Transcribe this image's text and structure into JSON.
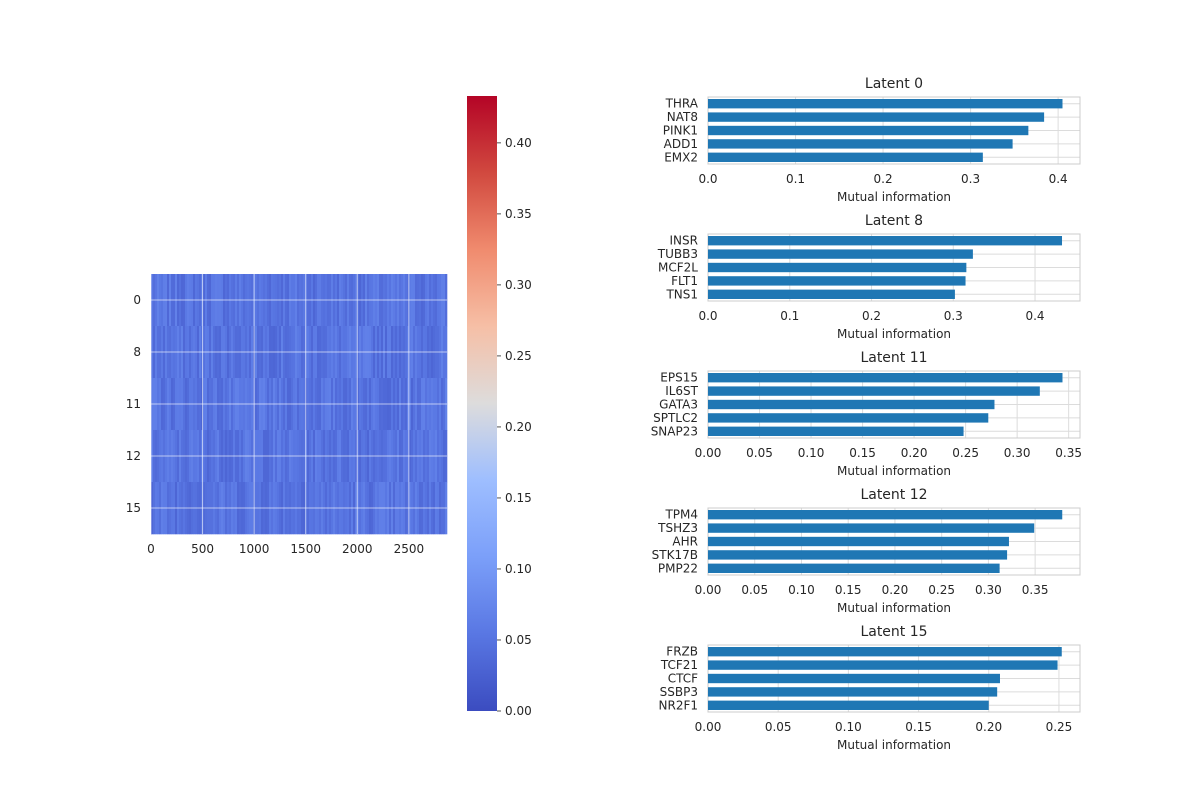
{
  "chart_data": [
    {
      "type": "heatmap",
      "title": "",
      "xlabel": "",
      "ylabel": "",
      "x_ticks": [
        0,
        500,
        1000,
        1500,
        2000,
        2500
      ],
      "xlim": [
        0,
        2870
      ],
      "y_tick_labels": [
        "0",
        "8",
        "11",
        "12",
        "15"
      ],
      "rows": 5,
      "value_range": [
        0.0,
        0.43
      ],
      "typical_value": 0.05,
      "grid": true,
      "colormap": "coolwarm",
      "colorbar": {
        "ticks": [
          "0.00",
          "0.05",
          "0.10",
          "0.15",
          "0.20",
          "0.25",
          "0.30",
          "0.35",
          "0.40"
        ],
        "min": 0.0,
        "max": 0.433
      }
    },
    {
      "type": "bar",
      "orientation": "horizontal",
      "title": "Latent 0",
      "xlabel": "Mutual information",
      "categories": [
        "THRA",
        "NAT8",
        "PINK1",
        "ADD1",
        "EMX2"
      ],
      "values": [
        0.405,
        0.384,
        0.366,
        0.348,
        0.314
      ],
      "xlim": [
        0,
        0.425
      ],
      "x_ticks": [
        "0.0",
        "0.1",
        "0.2",
        "0.3",
        "0.4"
      ],
      "grid": true
    },
    {
      "type": "bar",
      "orientation": "horizontal",
      "title": "Latent 8",
      "xlabel": "Mutual information",
      "categories": [
        "INSR",
        "TUBB3",
        "MCF2L",
        "FLT1",
        "TNS1"
      ],
      "values": [
        0.433,
        0.324,
        0.316,
        0.315,
        0.302
      ],
      "xlim": [
        0,
        0.455
      ],
      "x_ticks": [
        "0.0",
        "0.1",
        "0.2",
        "0.3",
        "0.4"
      ],
      "grid": true
    },
    {
      "type": "bar",
      "orientation": "horizontal",
      "title": "Latent 11",
      "xlabel": "Mutual information",
      "categories": [
        "EPS15",
        "IL6ST",
        "GATA3",
        "SPTLC2",
        "SNAP23"
      ],
      "values": [
        0.344,
        0.322,
        0.278,
        0.272,
        0.248
      ],
      "xlim": [
        0,
        0.361
      ],
      "x_ticks": [
        "0.00",
        "0.05",
        "0.10",
        "0.15",
        "0.20",
        "0.25",
        "0.30",
        "0.35"
      ],
      "grid": true
    },
    {
      "type": "bar",
      "orientation": "horizontal",
      "title": "Latent 12",
      "xlabel": "Mutual information",
      "categories": [
        "TPM4",
        "TSHZ3",
        "AHR",
        "STK17B",
        "PMP22"
      ],
      "values": [
        0.379,
        0.349,
        0.322,
        0.32,
        0.312
      ],
      "xlim": [
        0,
        0.398
      ],
      "x_ticks": [
        "0.00",
        "0.05",
        "0.10",
        "0.15",
        "0.20",
        "0.25",
        "0.30",
        "0.35"
      ],
      "grid": true
    },
    {
      "type": "bar",
      "orientation": "horizontal",
      "title": "Latent 15",
      "xlabel": "Mutual information",
      "categories": [
        "FRZB",
        "TCF21",
        "CTCF",
        "SSBP3",
        "NR2F1"
      ],
      "values": [
        0.252,
        0.249,
        0.208,
        0.206,
        0.2
      ],
      "xlim": [
        0,
        0.265
      ],
      "x_ticks": [
        "0.00",
        "0.05",
        "0.10",
        "0.15",
        "0.20",
        "0.25"
      ],
      "grid": true
    }
  ],
  "colors": {
    "bar": "#1f77b4",
    "grid": "#dcdcdc",
    "spine": "#cccccc",
    "text": "#262626"
  }
}
